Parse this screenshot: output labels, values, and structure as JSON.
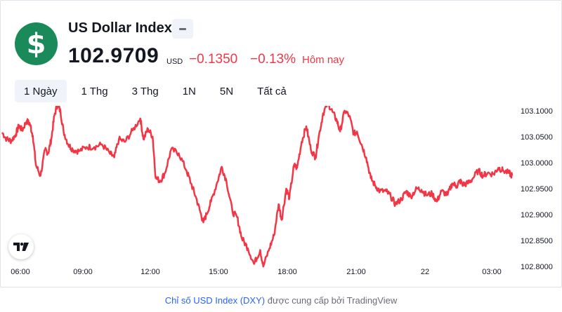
{
  "header": {
    "logo_symbol": "$",
    "symbol_name": "US Dollar Index",
    "price": "102.9709",
    "currency": "USD",
    "change": "−0.1350",
    "change_pct": "−0.13%",
    "period": "Hôm nay"
  },
  "range_tabs": [
    "1 Ngày",
    "1 Thg",
    "3 Thg",
    "1N",
    "5N",
    "Tất cả"
  ],
  "colors": {
    "line": "#f23645",
    "logo_bg": "#1b8a5a",
    "accent": "#2962ff"
  },
  "chart_data": {
    "type": "line",
    "x_ticks": [
      "06:00",
      "09:00",
      "12:00",
      "15:00",
      "18:00",
      "21:00",
      "22",
      "03:00"
    ],
    "y_ticks": [
      "103.1000",
      "103.0500",
      "103.0000",
      "102.9500",
      "102.9000",
      "102.8500",
      "102.8000"
    ],
    "ylim": [
      102.78,
      103.12
    ],
    "series": [
      {
        "x": [
          0,
          0.3,
          0.6,
          0.9,
          1.1,
          1.3,
          1.6,
          1.8,
          2.0,
          2.2,
          2.5,
          2.8,
          3.0,
          3.2,
          3.4,
          3.6,
          3.8,
          4.0,
          4.3,
          4.6,
          5.0,
          5.5,
          6.0,
          6.5,
          7.0,
          7.3,
          7.6,
          8.0,
          8.5,
          9.0,
          9.2,
          9.5,
          9.8,
          10.0,
          10.3,
          10.6,
          11.0,
          11.5,
          12.0,
          12.3,
          12.6,
          12.9,
          13.1,
          13.3,
          13.6,
          14.0,
          14.3,
          14.6,
          15.0,
          15.3,
          15.6,
          16.0,
          16.4,
          16.8,
          17.0,
          17.4,
          17.7,
          18.0,
          18.2,
          18.5,
          18.7,
          19.0,
          19.2,
          19.5,
          19.8,
          20.1,
          20.4,
          20.6,
          20.9,
          21.2,
          21.5,
          21.8,
          22.0,
          22.3,
          22.6,
          22.9,
          23.1,
          23.4,
          23.7,
          24.0,
          24.3,
          24.6,
          25.0,
          25.3,
          25.6,
          26.0,
          26.3,
          26.6,
          27.0,
          27.3,
          27.6,
          28.0,
          28.3,
          28.6,
          29.0,
          29.3,
          29.6,
          29.8,
          30.0,
          30.3,
          30.6,
          31.0,
          31.3,
          31.6,
          32.0,
          32.3,
          32.6,
          33.0,
          33.2
        ],
        "y": [
          103.058,
          103.045,
          103.042,
          103.055,
          103.072,
          103.062,
          103.08,
          103.075,
          103.052,
          102.995,
          102.975,
          103.025,
          103.018,
          103.045,
          103.09,
          103.112,
          103.098,
          103.06,
          103.035,
          103.025,
          103.022,
          103.03,
          103.03,
          103.035,
          103.018,
          103.01,
          103.045,
          103.04,
          103.062,
          103.085,
          103.045,
          103.065,
          103.05,
          102.97,
          102.965,
          102.98,
          103.025,
          103.018,
          102.985,
          102.96,
          102.935,
          102.905,
          102.885,
          102.9,
          102.925,
          102.962,
          102.992,
          102.965,
          102.905,
          102.895,
          102.855,
          102.835,
          102.805,
          102.832,
          102.8,
          102.835,
          102.86,
          102.92,
          102.89,
          102.95,
          102.932,
          102.995,
          102.99,
          103.04,
          103.07,
          103.025,
          103.01,
          103.048,
          103.095,
          103.115,
          103.098,
          103.08,
          103.06,
          103.1,
          103.09,
          103.055,
          103.06,
          103.035,
          103.01,
          102.97,
          102.955,
          102.945,
          102.945,
          102.935,
          102.92,
          102.93,
          102.945,
          102.935,
          102.95,
          102.948,
          102.938,
          102.94,
          102.925,
          102.945,
          102.938,
          102.96,
          102.955,
          102.965,
          102.958,
          102.96,
          102.968,
          102.985,
          102.975,
          102.98,
          102.978,
          102.99,
          102.985,
          102.98,
          102.975
        ]
      }
    ],
    "grid": false,
    "legend": "none"
  },
  "tv_logo_text": "TV",
  "footer": {
    "link_text": "Chỉ số USD Index (DXY)",
    "rest_text": "được cung cấp bởi TradingView"
  }
}
